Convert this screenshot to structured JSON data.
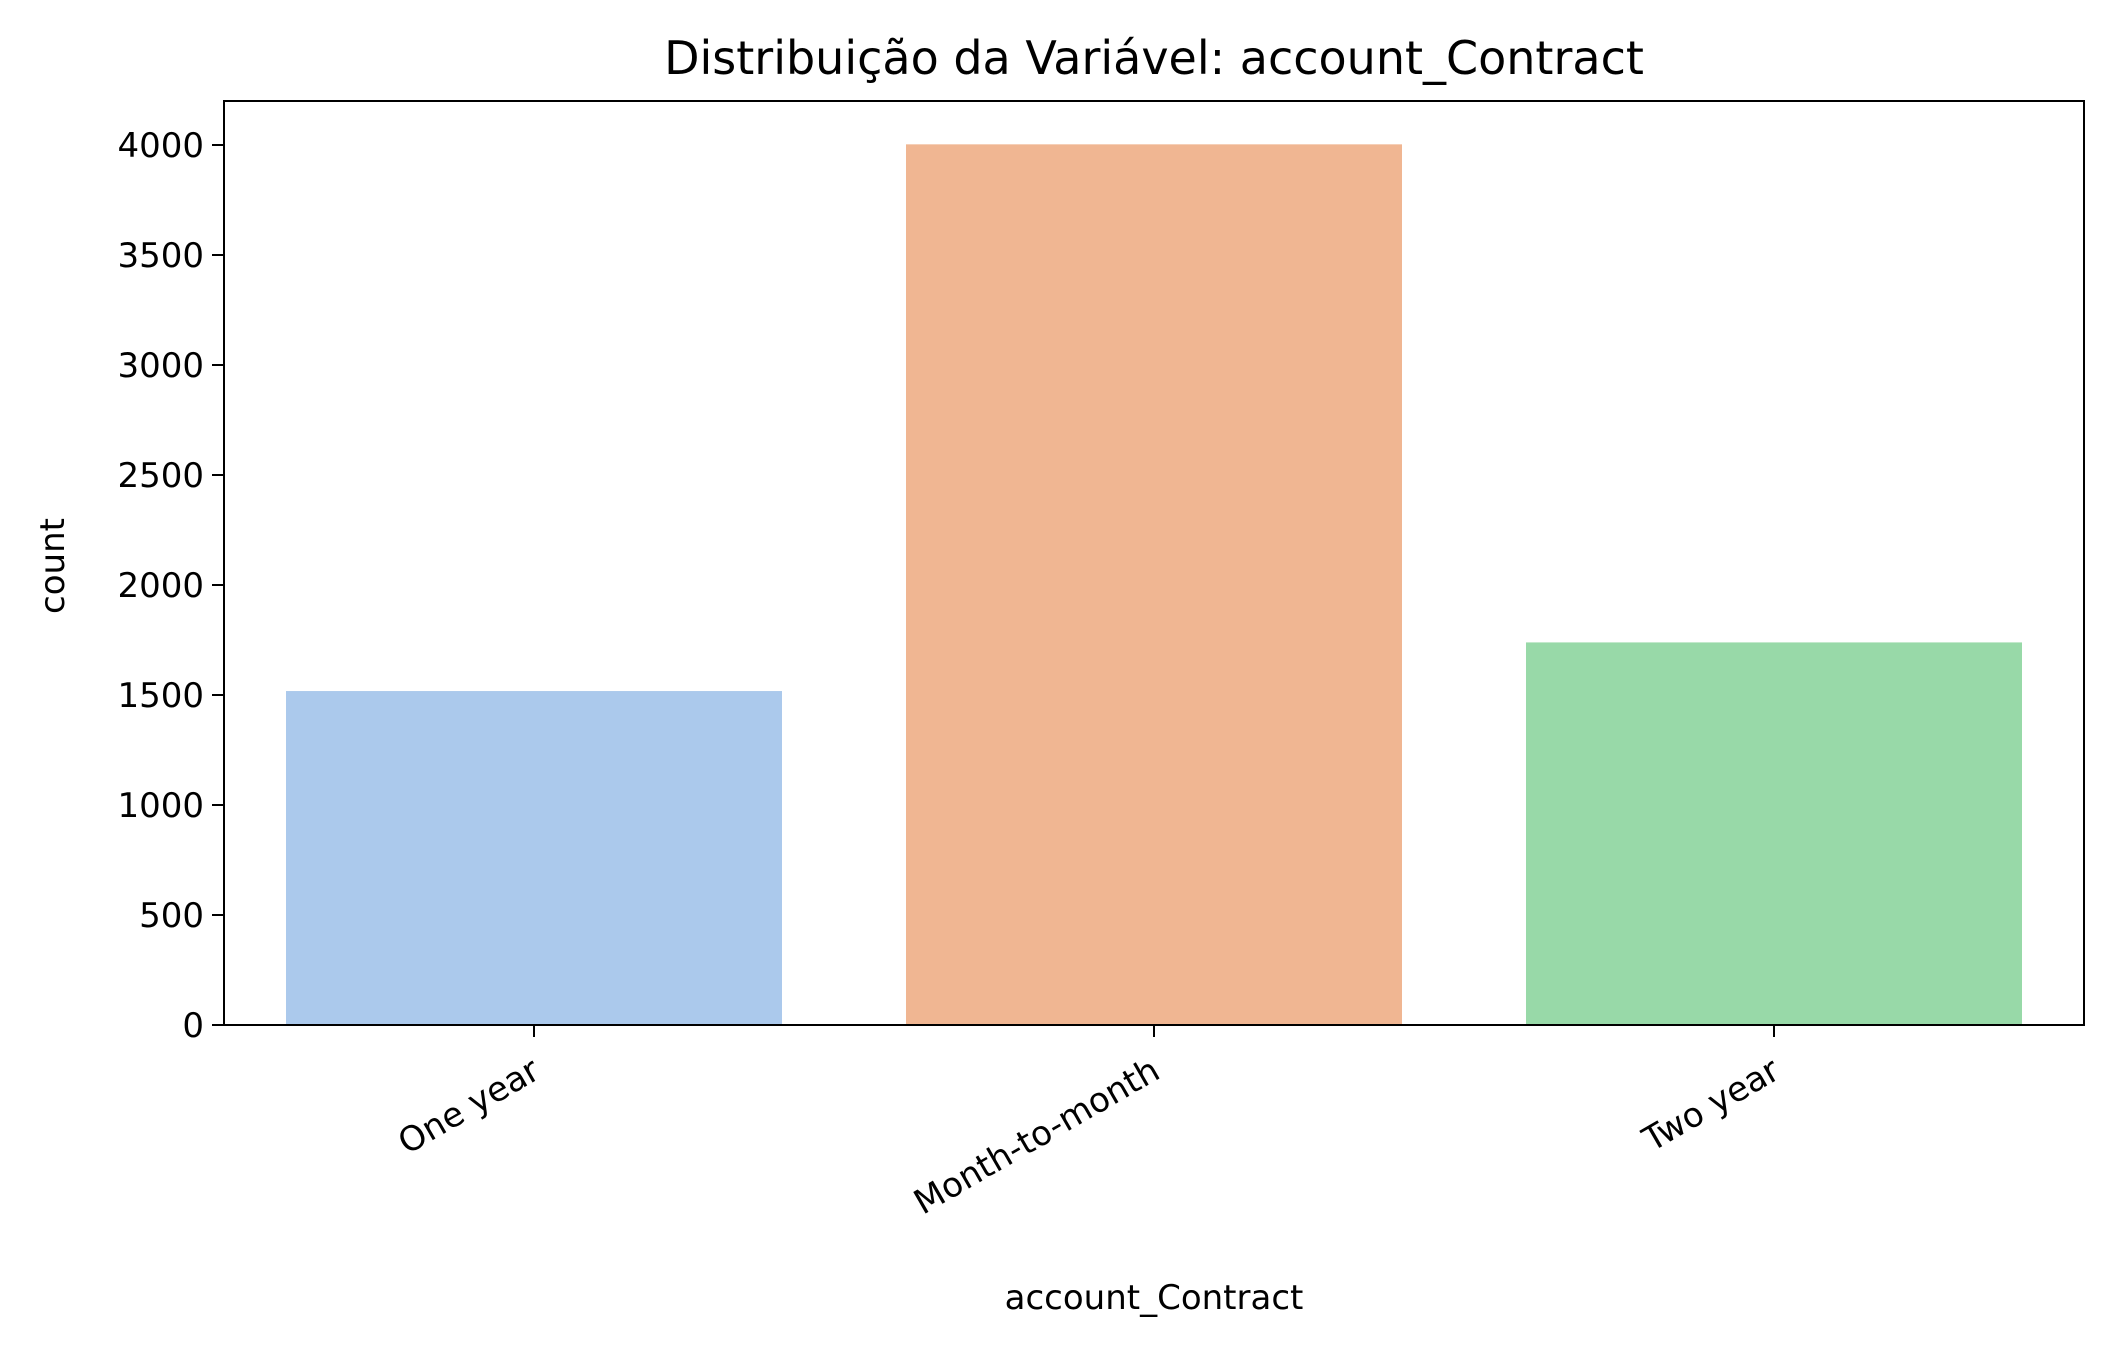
{
  "chart_data": {
    "type": "bar",
    "title": "Distribuição da Variável: account_Contract",
    "xlabel": "account_Contract",
    "ylabel": "count",
    "categories": [
      "One year",
      "Month-to-month",
      "Two year"
    ],
    "values": [
      1518,
      4003,
      1739
    ],
    "colors": [
      "#abc9ec",
      "#f0b692",
      "#98d9a8"
    ],
    "ylim": [
      0,
      4200
    ],
    "yticks": [
      0,
      500,
      1000,
      1500,
      2000,
      2500,
      3000,
      3500,
      4000
    ],
    "xtick_rotation_deg": 30,
    "grid": false,
    "legend": "none"
  }
}
